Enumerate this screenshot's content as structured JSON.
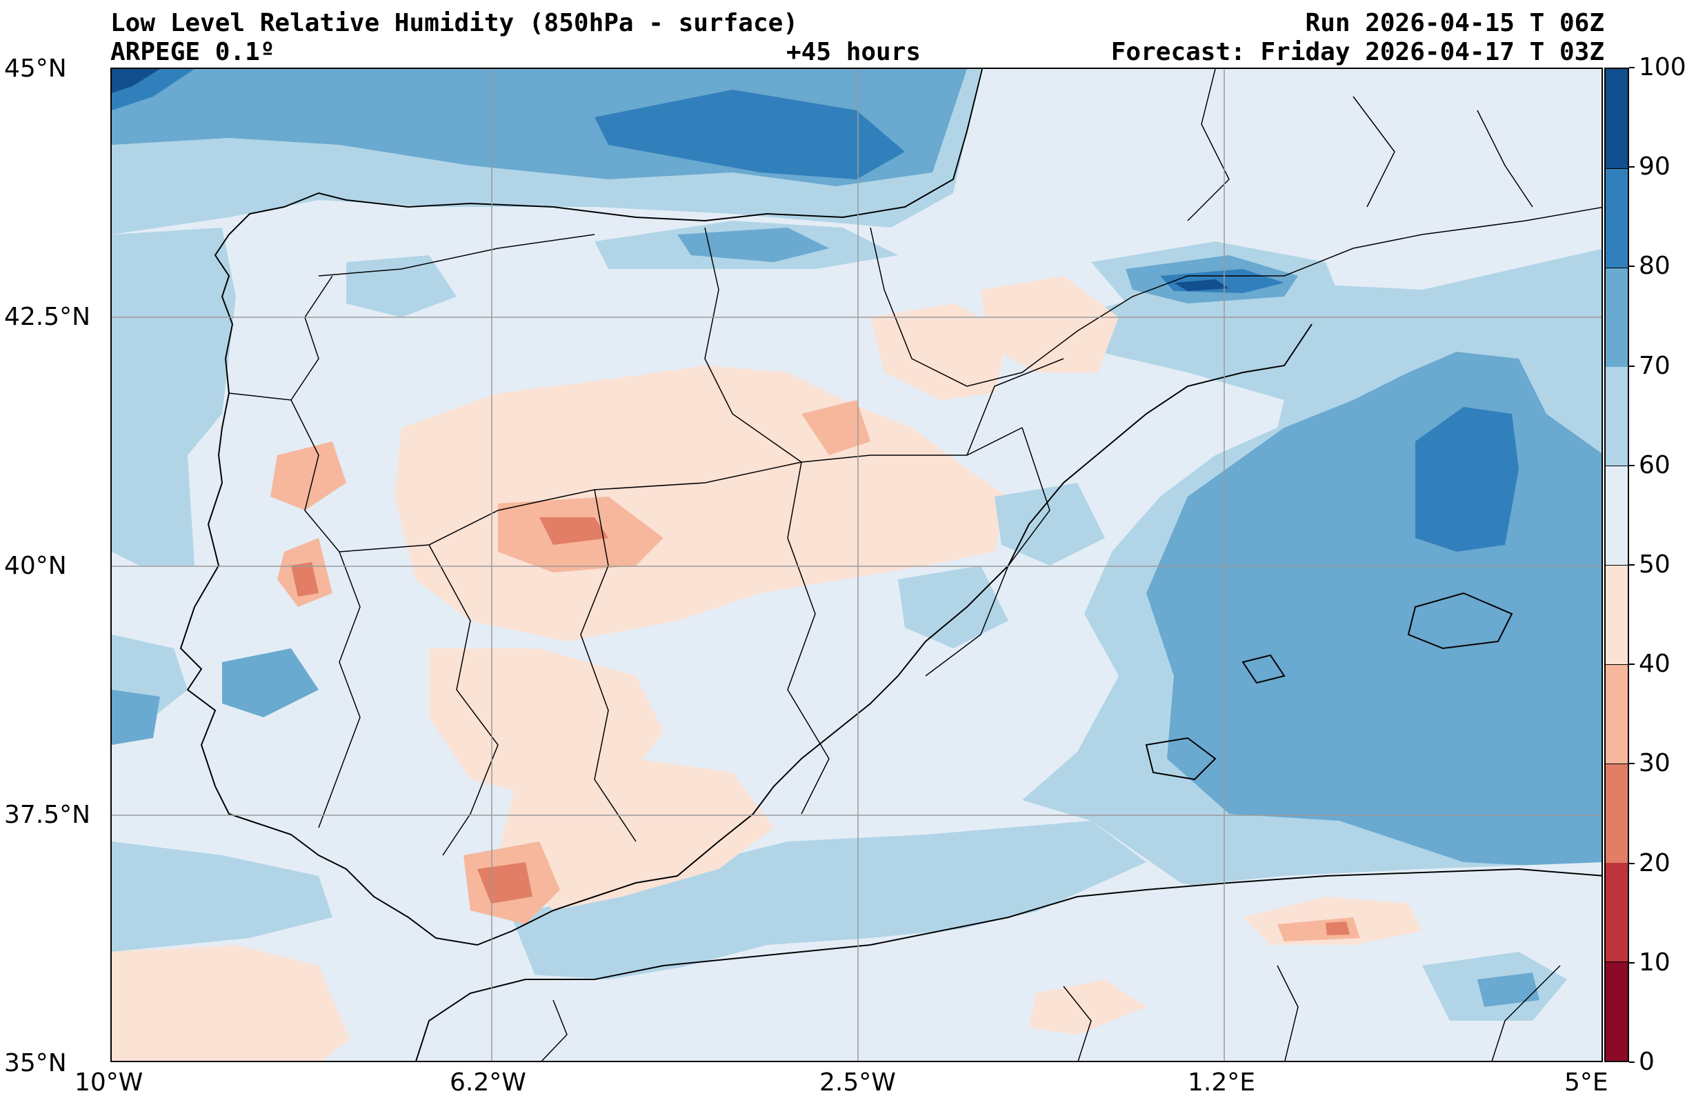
{
  "header": {
    "title": "Low Level Relative Humidity (850hPa - surface)",
    "model": "ARPEGE 0.1º",
    "lead_time": "+45 hours",
    "run": "Run 2026-04-15 T 06Z",
    "forecast": "Forecast: Friday 2026-04-17 T 03Z"
  },
  "map": {
    "lat_labels": [
      "45°N",
      "42.5°N",
      "40°N",
      "37.5°N",
      "35°N"
    ],
    "lon_labels": [
      "10°W",
      "6.2°W",
      "2.5°W",
      "1.2°E",
      "5°E"
    ],
    "extent": {
      "lon_min": -10,
      "lon_max": 5,
      "lat_min": 35,
      "lat_max": 45
    }
  },
  "colorbar": {
    "ticks": [
      "0",
      "10",
      "20",
      "30",
      "40",
      "50",
      "60",
      "70",
      "80",
      "90",
      "100"
    ],
    "colors": [
      "#8b0a26",
      "#c0343b",
      "#e17e65",
      "#f6b79c",
      "#fae2d5",
      "#e4edf6",
      "#b1d5e7",
      "#6aa9d0",
      "#3180bc",
      "#124f8e"
    ]
  },
  "colors": {
    "land_light": "#e4edf6",
    "sea_moist": "#b1d5e7",
    "sea_wet": "#6aa9d0",
    "peach": "#fae2d5",
    "salmon": "#f6b79c",
    "red": "#e17e65",
    "blue": "#3180bc",
    "navy": "#124f8e"
  }
}
